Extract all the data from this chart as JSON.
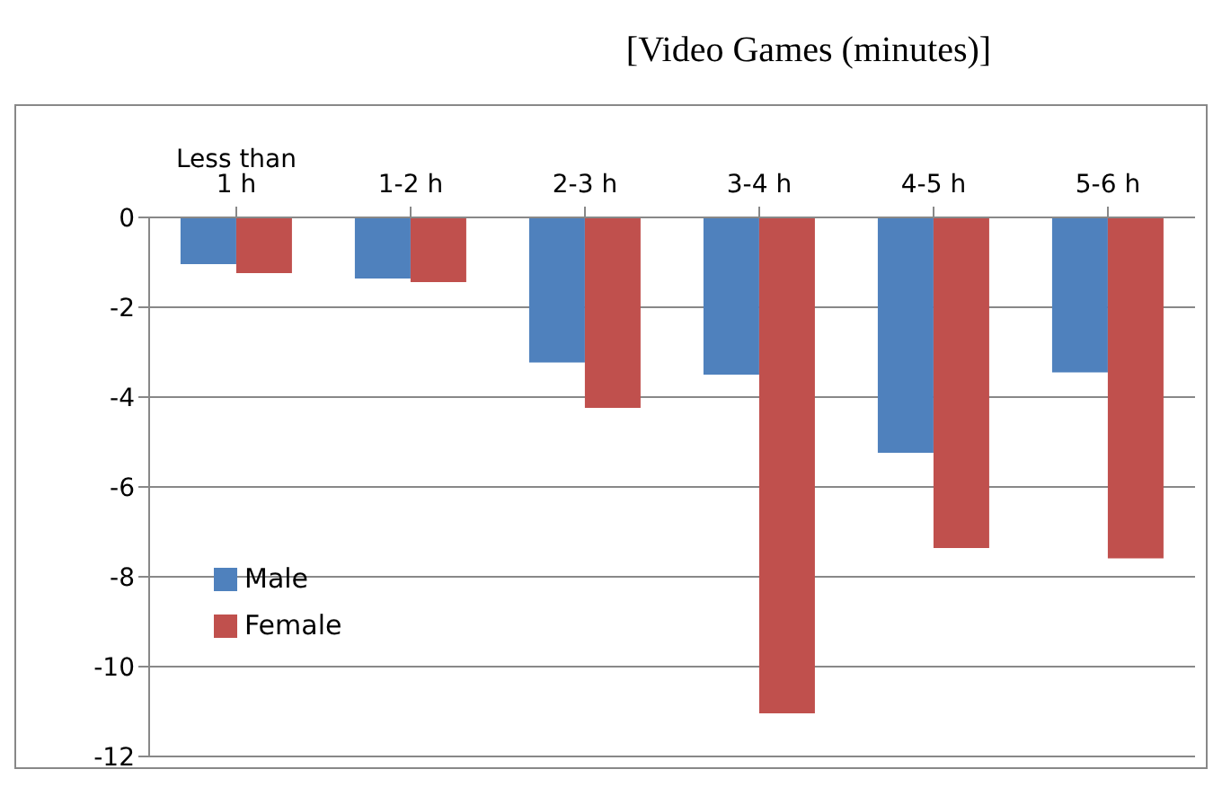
{
  "chart_data": {
    "type": "bar",
    "title": "[Video Games (minutes)]",
    "categories": [
      "Less than 1 h",
      "1-2 h",
      "2-3 h",
      "3-4 h",
      "4-5 h",
      "5-6 h"
    ],
    "series": [
      {
        "name": "Male",
        "color": "#4f81bd",
        "values": [
          -1.04,
          -1.36,
          -3.23,
          -3.5,
          -5.24,
          -3.45
        ]
      },
      {
        "name": "Female",
        "color": "#c0504d",
        "values": [
          -1.24,
          -1.44,
          -4.24,
          -11.04,
          -7.36,
          -7.59
        ]
      }
    ],
    "ylim": [
      -12,
      0
    ],
    "yticks": [
      -12,
      -10,
      -8,
      -6,
      -4,
      -2,
      0
    ],
    "grid": "y",
    "legend": "bottom left"
  }
}
